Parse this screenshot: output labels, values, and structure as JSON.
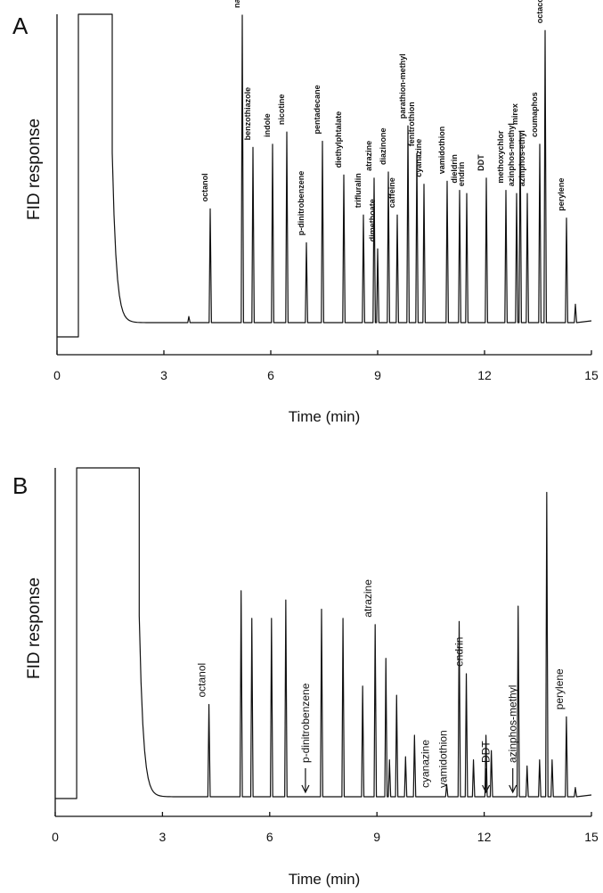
{
  "chart_data": [
    {
      "panel": "A",
      "type": "line",
      "xlabel": "Time (min)",
      "ylabel": "FID response",
      "xlim": [
        0,
        15
      ],
      "xticks": [
        0,
        3,
        6,
        9,
        12,
        15
      ],
      "grid": false,
      "injection": {
        "x_start": 0.6,
        "x_end": 1.55,
        "x_rise": 1.5
      },
      "unlabeled_peaks": [
        {
          "x": 1.8,
          "height": 0.36
        },
        {
          "x": 2.55,
          "height": 0.06
        },
        {
          "x": 3.7,
          "height": 0.02
        },
        {
          "x": 14.55,
          "height": 0.06
        }
      ],
      "peaks": [
        {
          "name": "octanol",
          "x": 4.3,
          "height": 0.37
        },
        {
          "name": "naphtalene",
          "x": 5.2,
          "height": 1.0
        },
        {
          "name": "benzothiazole",
          "x": 5.5,
          "height": 0.57
        },
        {
          "name": "indole",
          "x": 6.05,
          "height": 0.58
        },
        {
          "name": "nicotine",
          "x": 6.45,
          "height": 0.62
        },
        {
          "name": "p-dinitrobenzene",
          "x": 7.0,
          "height": 0.26
        },
        {
          "name": "pentadecane",
          "x": 7.45,
          "height": 0.59
        },
        {
          "name": "diethylphtalate",
          "x": 8.05,
          "height": 0.48
        },
        {
          "name": "trifluralin",
          "x": 8.6,
          "height": 0.35
        },
        {
          "name": "atrazine",
          "x": 8.9,
          "height": 0.47
        },
        {
          "name": "dimethoate",
          "x": 9.0,
          "height": 0.24
        },
        {
          "name": "diazinone",
          "x": 9.3,
          "height": 0.49
        },
        {
          "name": "caffeine",
          "x": 9.55,
          "height": 0.35
        },
        {
          "name": "parathion-methyl",
          "x": 9.85,
          "height": 0.64
        },
        {
          "name": "fenitrothion",
          "x": 10.1,
          "height": 0.55
        },
        {
          "name": "cyanazine",
          "x": 10.3,
          "height": 0.45
        },
        {
          "name": "vamidothion",
          "x": 10.95,
          "height": 0.46
        },
        {
          "name": "dieldrin",
          "x": 11.3,
          "height": 0.43
        },
        {
          "name": "endrin",
          "x": 11.5,
          "height": 0.42
        },
        {
          "name": "DDT",
          "x": 12.05,
          "height": 0.47
        },
        {
          "name": "methoxychlor",
          "x": 12.6,
          "height": 0.43
        },
        {
          "name": "azinphos-methyl",
          "x": 12.9,
          "height": 0.42
        },
        {
          "name": "mirex",
          "x": 13.0,
          "height": 0.62
        },
        {
          "name": "azinphos-ethyl",
          "x": 13.2,
          "height": 0.42
        },
        {
          "name": "coumaphos",
          "x": 13.55,
          "height": 0.58
        },
        {
          "name": "octacosane",
          "x": 13.7,
          "height": 0.95
        },
        {
          "name": "perylene",
          "x": 14.3,
          "height": 0.34
        }
      ]
    },
    {
      "panel": "B",
      "type": "line",
      "xlabel": "Time (min)",
      "ylabel": "FID response",
      "xlim": [
        0,
        15
      ],
      "xticks": [
        0,
        3,
        6,
        9,
        12,
        15
      ],
      "grid": false,
      "injection": {
        "x_start": 0.6,
        "x_end": 2.35,
        "x_rise": 2.3
      },
      "peaks": [
        {
          "x": 4.3,
          "height": 0.3,
          "label": "octanol"
        },
        {
          "x": 5.2,
          "height": 0.67
        },
        {
          "x": 5.5,
          "height": 0.58
        },
        {
          "x": 6.05,
          "height": 0.58
        },
        {
          "x": 6.45,
          "height": 0.64
        },
        {
          "x": 7.45,
          "height": 0.61
        },
        {
          "x": 8.05,
          "height": 0.58
        },
        {
          "x": 8.6,
          "height": 0.36
        },
        {
          "x": 8.95,
          "height": 0.56,
          "label": "atrazine"
        },
        {
          "x": 9.25,
          "height": 0.45
        },
        {
          "x": 9.35,
          "height": 0.12
        },
        {
          "x": 9.55,
          "height": 0.33
        },
        {
          "x": 9.8,
          "height": 0.13
        },
        {
          "x": 10.05,
          "height": 0.2
        },
        {
          "x": 10.95,
          "height": 0.04
        },
        {
          "x": 11.3,
          "height": 0.57
        },
        {
          "x": 11.5,
          "height": 0.4,
          "label": "endrin"
        },
        {
          "x": 11.7,
          "height": 0.12
        },
        {
          "x": 12.05,
          "height": 0.2
        },
        {
          "x": 12.2,
          "height": 0.15
        },
        {
          "x": 12.95,
          "height": 0.62
        },
        {
          "x": 13.2,
          "height": 0.1
        },
        {
          "x": 13.55,
          "height": 0.12
        },
        {
          "x": 13.75,
          "height": 0.99
        },
        {
          "x": 13.9,
          "height": 0.12
        },
        {
          "x": 14.3,
          "height": 0.26,
          "label": "perylene"
        },
        {
          "x": 14.55,
          "height": 0.03
        }
      ],
      "annotations": [
        {
          "name": "p-dinitrobenzene",
          "x": 7.0,
          "arrow": true
        },
        {
          "name": "cyanazine",
          "x": 10.35,
          "arrow": false
        },
        {
          "name": "vamidothion",
          "x": 10.85,
          "arrow": false
        },
        {
          "name": "DDT",
          "x": 12.05,
          "arrow": true
        },
        {
          "name": "azinphos-methyl",
          "x": 12.8,
          "arrow": true
        }
      ]
    }
  ]
}
